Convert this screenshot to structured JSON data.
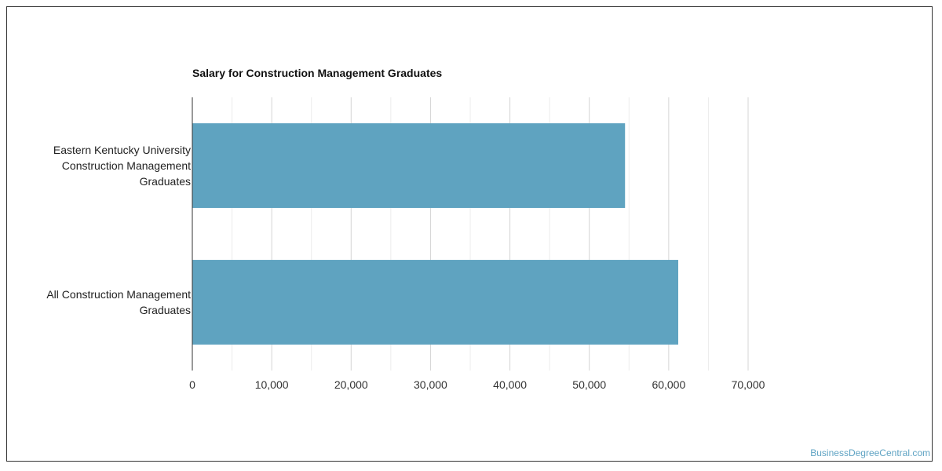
{
  "chart_data": {
    "type": "bar",
    "orientation": "horizontal",
    "title": "Salary for Construction Management Graduates",
    "categories": [
      [
        "Eastern Kentucky University",
        "Construction Management",
        "Graduates"
      ],
      [
        "All Construction Management",
        "Graduates"
      ]
    ],
    "values": [
      54500,
      61200
    ],
    "xlim": [
      0,
      70000
    ],
    "xticks": [
      0,
      10000,
      20000,
      30000,
      40000,
      50000,
      60000,
      70000
    ],
    "xtick_labels": [
      "0",
      "10,000",
      "20,000",
      "30,000",
      "40,000",
      "50,000",
      "60,000",
      "70,000"
    ],
    "grid": true,
    "bar_color": "#5fa3c0"
  },
  "watermark": "BusinessDegreeCentral.com"
}
